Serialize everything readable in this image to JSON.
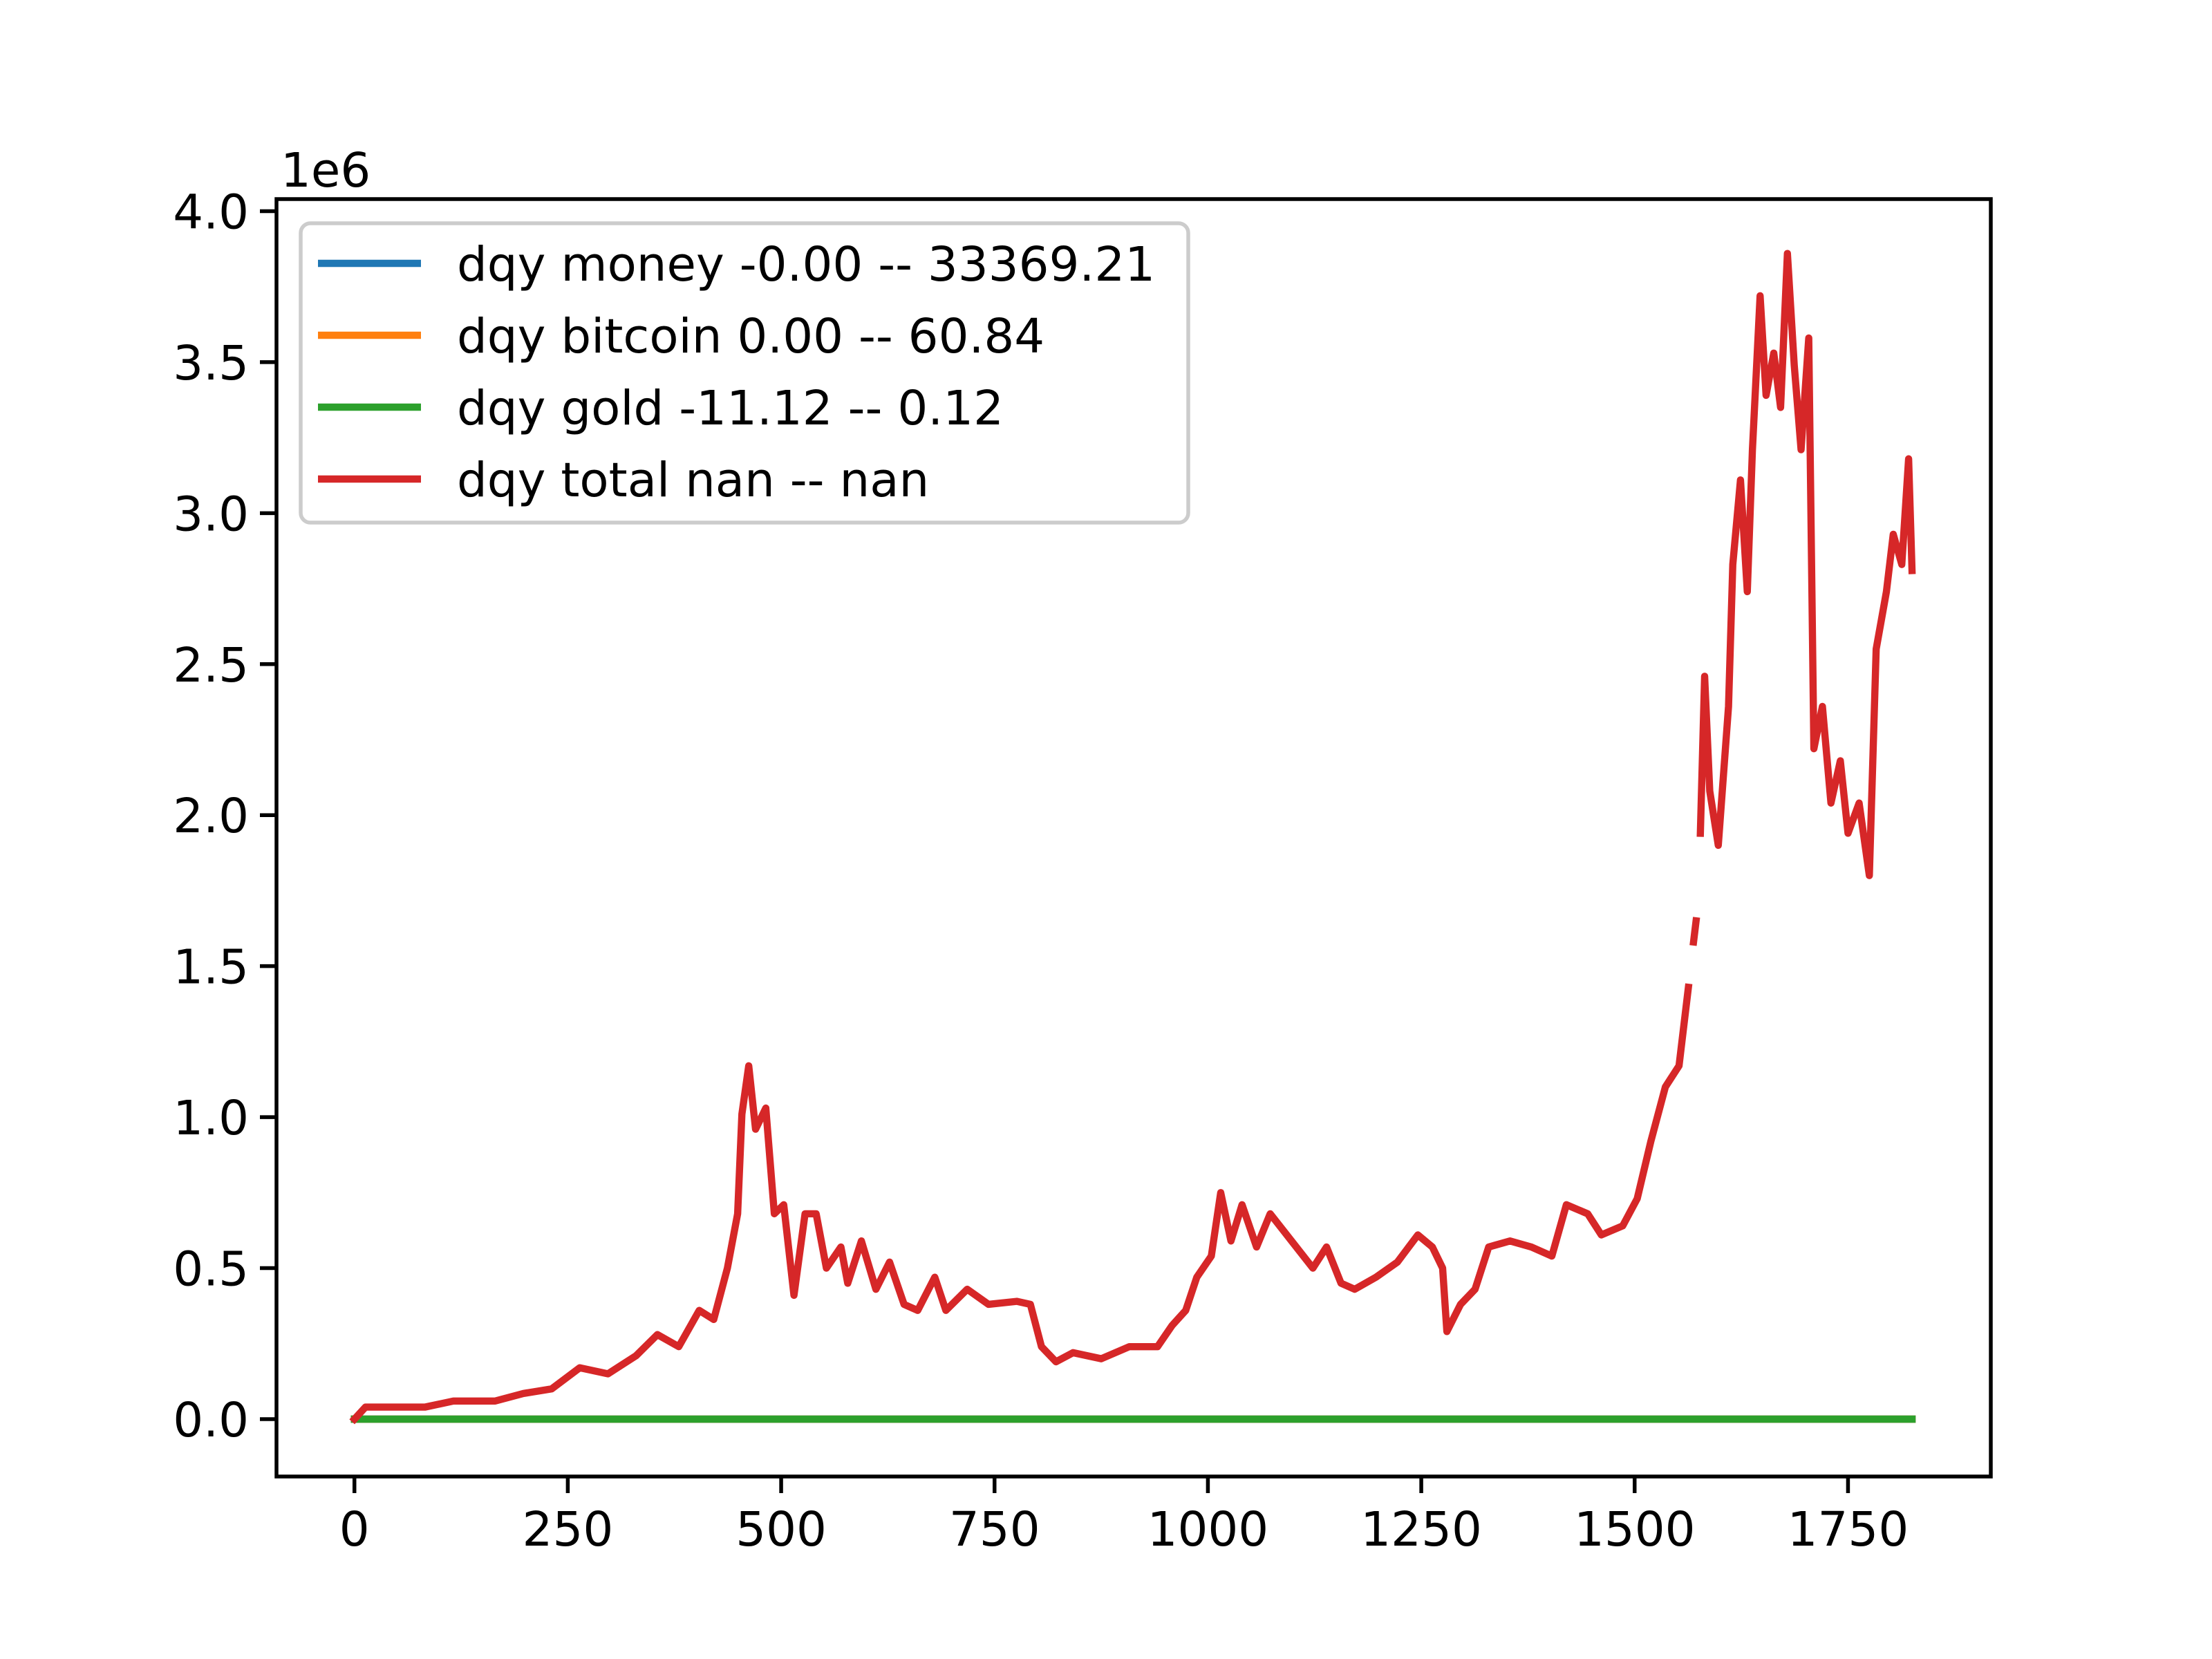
{
  "chart_data": {
    "type": "line",
    "y_offset_label": "1e6",
    "xlim": [
      -91.3,
      1917.3
    ],
    "ylim": [
      -0.19,
      4.04
    ],
    "xticks": [
      0,
      250,
      500,
      750,
      1000,
      1250,
      1500,
      1750
    ],
    "yticks": [
      {
        "value": 0,
        "label": "0.0"
      },
      {
        "value": 0.5,
        "label": "0.5"
      },
      {
        "value": 1,
        "label": "1.0"
      },
      {
        "value": 1.5,
        "label": "1.5"
      },
      {
        "value": 2,
        "label": "2.0"
      },
      {
        "value": 2.5,
        "label": "2.5"
      },
      {
        "value": 3,
        "label": "3.0"
      },
      {
        "value": 3.5,
        "label": "3.5"
      },
      {
        "value": 4,
        "label": "4.0"
      }
    ],
    "legend": "upper left",
    "series": [
      {
        "name": "dqy money -0.00 -- 33369.21",
        "color": "#1f77b4",
        "x": [
          0,
          1825
        ],
        "values": [
          0,
          0
        ]
      },
      {
        "name": "dqy bitcoin 0.00 -- 60.84",
        "color": "#ff7f0e",
        "x": [
          0,
          1825
        ],
        "values": [
          0,
          0
        ]
      },
      {
        "name": "dqy gold -11.12 -- 0.12",
        "color": "#2ca02c",
        "x": [
          0,
          1825
        ],
        "values": [
          0,
          0
        ]
      },
      {
        "name": "dqy total nan -- nan",
        "color": "#d62728",
        "x": [
          0,
          13,
          83,
          116,
          165,
          198,
          231,
          264,
          297,
          330,
          355,
          380,
          404,
          421,
          437,
          449,
          454,
          462,
          470,
          482,
          492,
          503,
          515,
          528,
          541,
          553,
          570,
          578,
          594,
          611,
          627,
          644,
          660,
          680,
          693,
          718,
          743,
          776,
          792,
          805,
          822,
          842,
          875,
          908,
          941,
          958,
          974,
          987,
          1004,
          1015,
          1027,
          1040,
          1057,
          1073,
          1098,
          1123,
          1139,
          1156,
          1172,
          1197,
          1222,
          1246,
          1263,
          1275,
          1280,
          1296,
          1313,
          1329,
          1354,
          1379,
          1403,
          1420,
          1445,
          1461,
          1486,
          1503,
          1519,
          1536,
          1552,
          1563,
          1567,
          1569,
          1572,
          1575,
          1577,
          1582,
          1588,
          1598,
          1610,
          1615,
          1624,
          1632,
          1638,
          1647,
          1654,
          1663,
          1671,
          1679,
          1687,
          1695,
          1704,
          1710,
          1720,
          1730,
          1741,
          1750,
          1763,
          1775,
          1783,
          1795,
          1803,
          1813,
          1821,
          1825
        ],
        "values": [
          0,
          0.04,
          0.04,
          0.06,
          0.06,
          0.085,
          0.1,
          0.17,
          0.15,
          0.21,
          0.28,
          0.24,
          0.36,
          0.33,
          0.5,
          0.68,
          1.01,
          1.17,
          0.96,
          1.03,
          0.68,
          0.71,
          0.41,
          0.68,
          0.68,
          0.5,
          0.57,
          0.45,
          0.59,
          0.43,
          0.52,
          0.38,
          0.36,
          0.47,
          0.36,
          0.43,
          0.38,
          0.39,
          0.38,
          0.24,
          0.19,
          0.22,
          0.2,
          0.24,
          0.24,
          0.31,
          0.36,
          0.47,
          0.54,
          0.75,
          0.59,
          0.71,
          0.57,
          0.68,
          0.59,
          0.5,
          0.57,
          0.45,
          0.43,
          0.47,
          0.52,
          0.61,
          0.57,
          0.5,
          0.29,
          0.38,
          0.43,
          0.57,
          0.59,
          0.57,
          0.54,
          0.71,
          0.68,
          0.61,
          0.64,
          0.73,
          0.92,
          1.1,
          1.17,
          1.43,
          null,
          1.58,
          1.65,
          null,
          1.94,
          2.46,
          2.08,
          1.9,
          2.36,
          2.83,
          3.11,
          2.74,
          3.21,
          3.72,
          3.39,
          3.53,
          3.35,
          3.86,
          3.49,
          3.21,
          3.58,
          2.22,
          2.36,
          2.04,
          2.18,
          1.94,
          2.04,
          1.8,
          2.55,
          2.74,
          2.93,
          2.83,
          3.18,
          2.81
        ]
      }
    ]
  }
}
